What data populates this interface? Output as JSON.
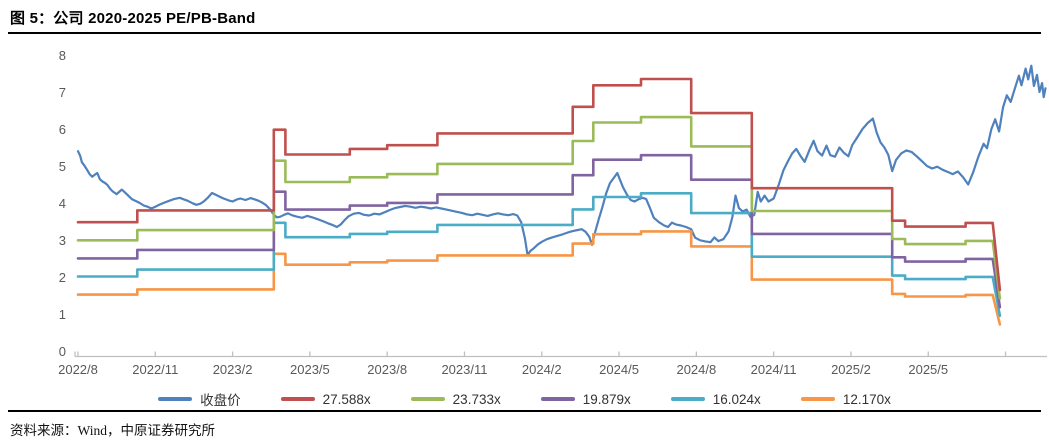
{
  "figure": {
    "title": "图 5：公司 2020-2025 PE/PB-Band",
    "source": "资料来源：Wind，中原证券研究所"
  },
  "chart_data": {
    "type": "line",
    "title": "公司 2020-2025 PE/PB-Band",
    "grid": false,
    "legend_position": "bottom",
    "legend": [
      "收盘价",
      "27.588x",
      "23.733x",
      "19.879x",
      "16.024x",
      "12.170x"
    ],
    "style": {
      "axis_color": "#BFBFBF",
      "tick_text_color": "#595959",
      "price_color": "#4F81BD",
      "band_colors": [
        "#C0504D",
        "#9BBB59",
        "#8064A2",
        "#4BACC6",
        "#F79646"
      ]
    },
    "x_axis": {
      "unit": "months since 2022/8",
      "tick_months": [
        0,
        3,
        6,
        9,
        12,
        15,
        18,
        21,
        24,
        27,
        30,
        33,
        36
      ],
      "tick_labels": [
        "2022/8",
        "2022/11",
        "2023/2",
        "2023/5",
        "2023/8",
        "2023/11",
        "2024/2",
        "2024/5",
        "2024/8",
        "2024/11",
        "2025/2",
        "2025/5",
        ""
      ]
    },
    "y_axis": {
      "min": 0,
      "max": 8,
      "ticks": [
        0,
        1,
        2,
        3,
        4,
        5,
        6,
        7,
        8
      ]
    },
    "pe_bands": {
      "reference_multiple": 27.588,
      "bands": [
        {
          "name": "27.588x",
          "multiple": 27.588,
          "color": "#C0504D"
        },
        {
          "name": "23.733x",
          "multiple": 23.733,
          "color": "#9BBB59"
        },
        {
          "name": "19.879x",
          "multiple": 19.879,
          "color": "#8064A2"
        },
        {
          "name": "16.024x",
          "multiple": 16.024,
          "color": "#4BACC6"
        },
        {
          "name": "12.170x",
          "multiple": 12.17,
          "color": "#F79646"
        }
      ],
      "base_points": [
        [
          0,
          3.5
        ],
        [
          2.3,
          3.5
        ],
        [
          2.3,
          3.82
        ],
        [
          7.6,
          3.82
        ],
        [
          7.6,
          6.0
        ],
        [
          8.05,
          6.0
        ],
        [
          8.05,
          5.33
        ],
        [
          10.55,
          5.33
        ],
        [
          10.55,
          5.48
        ],
        [
          12.0,
          5.48
        ],
        [
          12.0,
          5.58
        ],
        [
          13.95,
          5.58
        ],
        [
          13.95,
          5.9
        ],
        [
          19.2,
          5.9
        ],
        [
          19.2,
          6.62
        ],
        [
          20.0,
          6.62
        ],
        [
          20.0,
          7.2
        ],
        [
          21.85,
          7.2
        ],
        [
          21.85,
          7.37
        ],
        [
          23.8,
          7.37
        ],
        [
          23.8,
          6.45
        ],
        [
          26.15,
          6.45
        ],
        [
          26.15,
          4.42
        ],
        [
          31.6,
          4.42
        ],
        [
          31.6,
          3.54
        ],
        [
          32.1,
          3.54
        ],
        [
          32.1,
          3.38
        ],
        [
          34.45,
          3.38
        ],
        [
          34.45,
          3.48
        ],
        [
          35.5,
          3.48
        ],
        [
          35.78,
          1.67
        ]
      ]
    },
    "price_series": {
      "name": "收盘价",
      "color": "#4F81BD",
      "points": [
        [
          0,
          5.42
        ],
        [
          0.08,
          5.3
        ],
        [
          0.15,
          5.12
        ],
        [
          0.25,
          5.03
        ],
        [
          0.35,
          4.92
        ],
        [
          0.45,
          4.8
        ],
        [
          0.55,
          4.73
        ],
        [
          0.65,
          4.78
        ],
        [
          0.75,
          4.83
        ],
        [
          0.85,
          4.66
        ],
        [
          0.95,
          4.6
        ],
        [
          1.05,
          4.56
        ],
        [
          1.15,
          4.5
        ],
        [
          1.25,
          4.4
        ],
        [
          1.35,
          4.33
        ],
        [
          1.5,
          4.26
        ],
        [
          1.6,
          4.32
        ],
        [
          1.7,
          4.38
        ],
        [
          1.8,
          4.32
        ],
        [
          1.95,
          4.22
        ],
        [
          2.1,
          4.12
        ],
        [
          2.25,
          4.07
        ],
        [
          2.4,
          4.02
        ],
        [
          2.55,
          3.95
        ],
        [
          2.7,
          3.92
        ],
        [
          2.85,
          3.87
        ],
        [
          3,
          3.92
        ],
        [
          3.15,
          3.97
        ],
        [
          3.35,
          4.03
        ],
        [
          3.55,
          4.08
        ],
        [
          3.75,
          4.13
        ],
        [
          3.95,
          4.16
        ],
        [
          4.1,
          4.12
        ],
        [
          4.25,
          4.08
        ],
        [
          4.45,
          4.01
        ],
        [
          4.6,
          3.97
        ],
        [
          4.75,
          4
        ],
        [
          4.9,
          4.07
        ],
        [
          5.05,
          4.17
        ],
        [
          5.2,
          4.29
        ],
        [
          5.35,
          4.24
        ],
        [
          5.5,
          4.19
        ],
        [
          5.65,
          4.14
        ],
        [
          5.85,
          4.09
        ],
        [
          6,
          4.06
        ],
        [
          6.15,
          4.11
        ],
        [
          6.3,
          4.14
        ],
        [
          6.5,
          4.1
        ],
        [
          6.7,
          4.15
        ],
        [
          6.85,
          4.12
        ],
        [
          7,
          4.08
        ],
        [
          7.15,
          4.03
        ],
        [
          7.3,
          3.96
        ],
        [
          7.45,
          3.85
        ],
        [
          7.6,
          3.7
        ],
        [
          7.72,
          3.63
        ],
        [
          7.85,
          3.65
        ],
        [
          8,
          3.7
        ],
        [
          8.15,
          3.74
        ],
        [
          8.3,
          3.69
        ],
        [
          8.5,
          3.65
        ],
        [
          8.7,
          3.62
        ],
        [
          8.9,
          3.67
        ],
        [
          9.1,
          3.63
        ],
        [
          9.3,
          3.58
        ],
        [
          9.5,
          3.53
        ],
        [
          9.7,
          3.47
        ],
        [
          9.9,
          3.42
        ],
        [
          10.05,
          3.37
        ],
        [
          10.2,
          3.44
        ],
        [
          10.35,
          3.56
        ],
        [
          10.5,
          3.66
        ],
        [
          10.7,
          3.73
        ],
        [
          10.9,
          3.75
        ],
        [
          11.1,
          3.7
        ],
        [
          11.3,
          3.68
        ],
        [
          11.5,
          3.73
        ],
        [
          11.7,
          3.71
        ],
        [
          11.9,
          3.77
        ],
        [
          12.1,
          3.83
        ],
        [
          12.3,
          3.88
        ],
        [
          12.5,
          3.91
        ],
        [
          12.7,
          3.94
        ],
        [
          12.9,
          3.92
        ],
        [
          13.1,
          3.89
        ],
        [
          13.3,
          3.92
        ],
        [
          13.5,
          3.9
        ],
        [
          13.7,
          3.87
        ],
        [
          13.9,
          3.9
        ],
        [
          14.1,
          3.87
        ],
        [
          14.3,
          3.84
        ],
        [
          14.5,
          3.81
        ],
        [
          14.7,
          3.78
        ],
        [
          14.9,
          3.75
        ],
        [
          15.1,
          3.71
        ],
        [
          15.3,
          3.69
        ],
        [
          15.5,
          3.73
        ],
        [
          15.7,
          3.7
        ],
        [
          15.9,
          3.67
        ],
        [
          16.1,
          3.71
        ],
        [
          16.3,
          3.74
        ],
        [
          16.5,
          3.71
        ],
        [
          16.7,
          3.69
        ],
        [
          16.9,
          3.72
        ],
        [
          17.05,
          3.68
        ],
        [
          17.2,
          3.5
        ],
        [
          17.35,
          3.05
        ],
        [
          17.45,
          2.6
        ],
        [
          17.55,
          2.72
        ],
        [
          17.7,
          2.8
        ],
        [
          17.85,
          2.9
        ],
        [
          18,
          2.97
        ],
        [
          18.2,
          3.04
        ],
        [
          18.4,
          3.09
        ],
        [
          18.6,
          3.13
        ],
        [
          18.8,
          3.17
        ],
        [
          19,
          3.22
        ],
        [
          19.2,
          3.26
        ],
        [
          19.4,
          3.29
        ],
        [
          19.55,
          3.31
        ],
        [
          19.7,
          3.24
        ],
        [
          19.85,
          3.1
        ],
        [
          19.95,
          2.89
        ],
        [
          20.05,
          3.18
        ],
        [
          20.2,
          3.56
        ],
        [
          20.35,
          3.9
        ],
        [
          20.5,
          4.28
        ],
        [
          20.65,
          4.56
        ],
        [
          20.8,
          4.7
        ],
        [
          20.93,
          4.83
        ],
        [
          21.05,
          4.62
        ],
        [
          21.15,
          4.45
        ],
        [
          21.3,
          4.25
        ],
        [
          21.45,
          4.1
        ],
        [
          21.6,
          4.06
        ],
        [
          21.75,
          4.12
        ],
        [
          21.9,
          4.16
        ],
        [
          22.05,
          4.13
        ],
        [
          22.2,
          3.88
        ],
        [
          22.35,
          3.62
        ],
        [
          22.55,
          3.5
        ],
        [
          22.75,
          3.41
        ],
        [
          22.9,
          3.37
        ],
        [
          23.05,
          3.49
        ],
        [
          23.2,
          3.44
        ],
        [
          23.4,
          3.41
        ],
        [
          23.6,
          3.37
        ],
        [
          23.8,
          3.31
        ],
        [
          23.95,
          3.08
        ],
        [
          24.15,
          3.01
        ],
        [
          24.35,
          2.98
        ],
        [
          24.55,
          2.96
        ],
        [
          24.7,
          3.09
        ],
        [
          24.85,
          2.99
        ],
        [
          25.05,
          3.04
        ],
        [
          25.25,
          3.25
        ],
        [
          25.4,
          3.64
        ],
        [
          25.52,
          4.22
        ],
        [
          25.65,
          3.88
        ],
        [
          25.8,
          3.79
        ],
        [
          25.95,
          3.84
        ],
        [
          26.1,
          3.64
        ],
        [
          26.25,
          3.7
        ],
        [
          26.38,
          4.32
        ],
        [
          26.5,
          4.06
        ],
        [
          26.65,
          4.22
        ],
        [
          26.8,
          4.06
        ],
        [
          27,
          4.14
        ],
        [
          27.2,
          4.52
        ],
        [
          27.38,
          4.9
        ],
        [
          27.55,
          5.14
        ],
        [
          27.72,
          5.36
        ],
        [
          27.88,
          5.48
        ],
        [
          28.05,
          5.28
        ],
        [
          28.2,
          5.13
        ],
        [
          28.4,
          5.47
        ],
        [
          28.55,
          5.7
        ],
        [
          28.7,
          5.42
        ],
        [
          28.88,
          5.3
        ],
        [
          29.05,
          5.57
        ],
        [
          29.2,
          5.31
        ],
        [
          29.38,
          5.27
        ],
        [
          29.55,
          5.52
        ],
        [
          29.72,
          5.38
        ],
        [
          29.9,
          5.28
        ],
        [
          30.05,
          5.58
        ],
        [
          30.25,
          5.8
        ],
        [
          30.45,
          6.02
        ],
        [
          30.65,
          6.18
        ],
        [
          30.85,
          6.3
        ],
        [
          31,
          5.92
        ],
        [
          31.15,
          5.65
        ],
        [
          31.3,
          5.52
        ],
        [
          31.45,
          5.32
        ],
        [
          31.6,
          4.88
        ],
        [
          31.75,
          5.18
        ],
        [
          31.95,
          5.36
        ],
        [
          32.15,
          5.44
        ],
        [
          32.35,
          5.4
        ],
        [
          32.55,
          5.28
        ],
        [
          32.75,
          5.15
        ],
        [
          32.95,
          5.02
        ],
        [
          33.15,
          4.95
        ],
        [
          33.35,
          5
        ],
        [
          33.55,
          4.92
        ],
        [
          33.75,
          4.86
        ],
        [
          33.95,
          4.8
        ],
        [
          34.15,
          4.87
        ],
        [
          34.35,
          4.72
        ],
        [
          34.55,
          4.52
        ],
        [
          34.75,
          4.86
        ],
        [
          34.95,
          5.28
        ],
        [
          35.15,
          5.62
        ],
        [
          35.28,
          5.5
        ],
        [
          35.45,
          6.02
        ],
        [
          35.6,
          6.28
        ],
        [
          35.75,
          5.95
        ],
        [
          35.9,
          6.6
        ],
        [
          36.05,
          6.93
        ],
        [
          36.2,
          6.75
        ],
        [
          36.38,
          7.15
        ],
        [
          36.52,
          7.46
        ],
        [
          36.62,
          7.2
        ],
        [
          36.78,
          7.65
        ],
        [
          36.88,
          7.36
        ],
        [
          37,
          7.73
        ],
        [
          37.1,
          7.18
        ],
        [
          37.22,
          7.48
        ],
        [
          37.32,
          7.02
        ],
        [
          37.42,
          7.26
        ],
        [
          37.48,
          6.88
        ],
        [
          37.55,
          7.12
        ]
      ]
    }
  }
}
